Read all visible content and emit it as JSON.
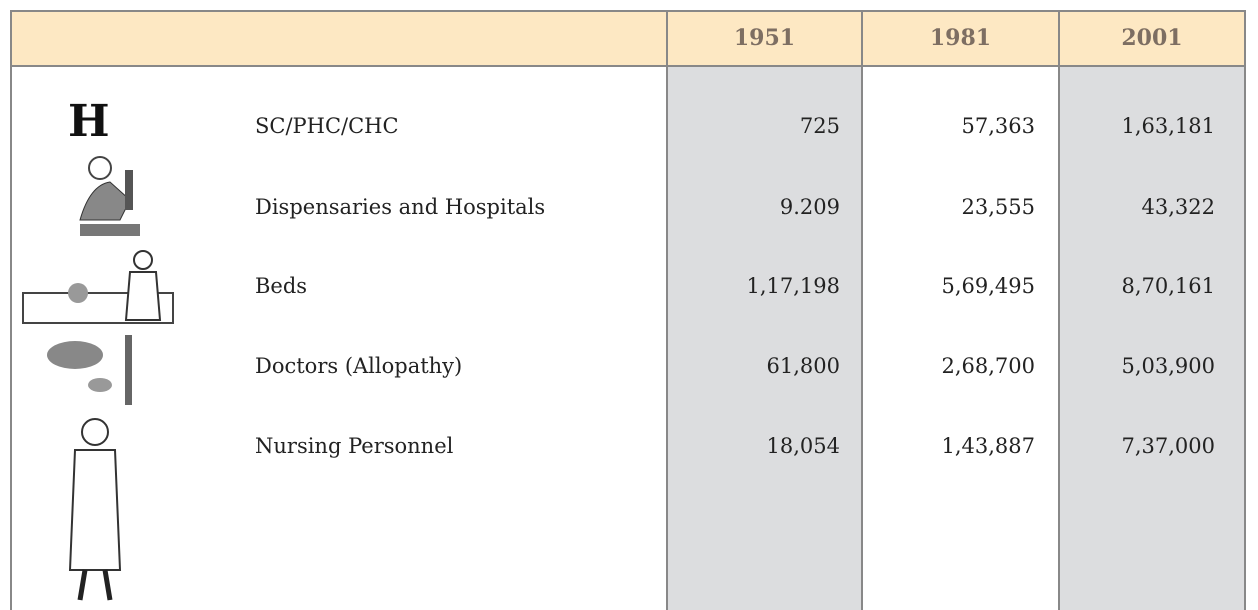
{
  "table": {
    "columns": [
      "1951",
      "1981",
      "2001"
    ],
    "rows": [
      {
        "icon": "H",
        "label": "SC/PHC/CHC",
        "values": [
          "725",
          "57,363",
          "1,63,181"
        ]
      },
      {
        "label": "Dispensaries and Hospitals",
        "values": [
          "9.209",
          "23,555",
          "43,322"
        ]
      },
      {
        "label": "Beds",
        "values": [
          "1,17,198",
          "5,69,495",
          "8,70,161"
        ]
      },
      {
        "label": "Doctors (Allopathy)",
        "values": [
          "61,800",
          "2,68,700",
          "5,03,900"
        ]
      },
      {
        "label": "Nursing Personnel",
        "values": [
          "18,054",
          "1,43,887",
          "7,37,000"
        ]
      }
    ]
  }
}
